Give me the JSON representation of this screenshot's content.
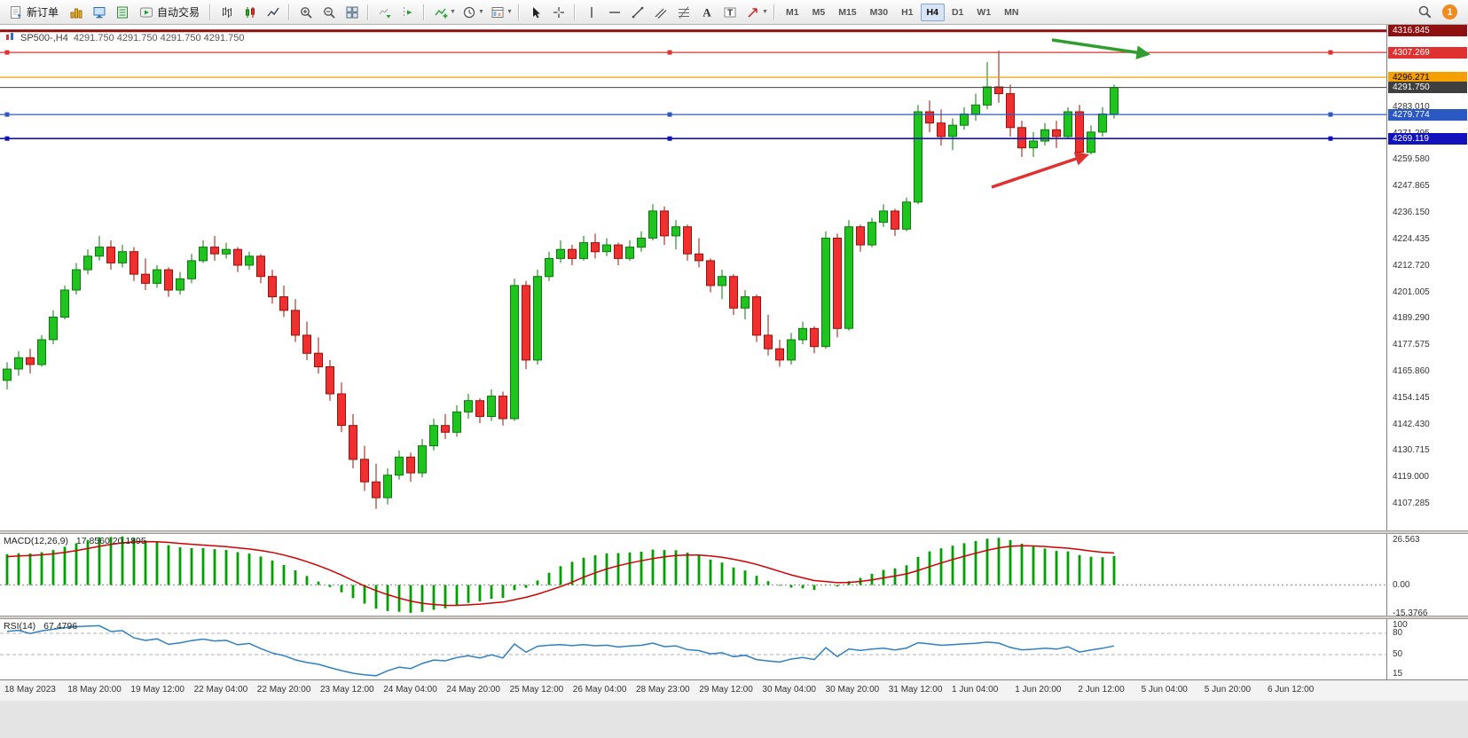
{
  "toolbar": {
    "new_order_label": "新订单",
    "autotrade_label": "自动交易",
    "timeframes": [
      "M1",
      "M5",
      "M15",
      "M30",
      "H1",
      "H4",
      "D1",
      "W1",
      "MN"
    ],
    "active_timeframe": "H4",
    "notification_count": "1",
    "items": [
      {
        "type": "button",
        "name": "new-order-button",
        "icon": "new-order-icon",
        "label_key": "new_order_label"
      },
      {
        "type": "icon",
        "name": "charts-icon"
      },
      {
        "type": "icon",
        "name": "market-watch-icon"
      },
      {
        "type": "icon",
        "name": "data-window-icon"
      },
      {
        "type": "button",
        "name": "autotrading-button",
        "icon": "autotrade-icon",
        "label_key": "autotrade_label"
      },
      {
        "type": "sep"
      },
      {
        "type": "icon",
        "name": "bar-chart-icon"
      },
      {
        "type": "icon",
        "name": "candlestick-chart-icon"
      },
      {
        "type": "icon",
        "name": "line-chart-icon"
      },
      {
        "type": "sep"
      },
      {
        "type": "icon",
        "name": "zoom-in-icon"
      },
      {
        "type": "icon",
        "name": "zoom-out-icon"
      },
      {
        "type": "icon",
        "name": "tile-windows-icon"
      },
      {
        "type": "sep"
      },
      {
        "type": "icon",
        "name": "auto-scroll-icon"
      },
      {
        "type": "icon",
        "name": "chart-shift-icon"
      },
      {
        "type": "sep"
      },
      {
        "type": "icon",
        "name": "indicators-icon",
        "caret": true
      },
      {
        "type": "icon",
        "name": "periods-icon",
        "caret": true
      },
      {
        "type": "icon",
        "name": "templates-icon",
        "caret": true
      },
      {
        "type": "sep"
      },
      {
        "type": "icon",
        "name": "cursor-icon"
      },
      {
        "type": "icon",
        "name": "crosshair-icon"
      },
      {
        "type": "sep"
      },
      {
        "type": "icon",
        "name": "vertical-line-icon"
      },
      {
        "type": "icon",
        "name": "horizontal-line-icon"
      },
      {
        "type": "icon",
        "name": "trendline-icon"
      },
      {
        "type": "icon",
        "name": "equidistant-channel-icon"
      },
      {
        "type": "icon",
        "name": "fibonacci-icon"
      },
      {
        "type": "icon",
        "name": "text-icon"
      },
      {
        "type": "icon",
        "name": "label-icon"
      },
      {
        "type": "icon",
        "name": "arrows-icon",
        "caret": true
      },
      {
        "type": "sep"
      },
      {
        "type": "timeframes"
      },
      {
        "type": "spacer"
      },
      {
        "type": "icon",
        "name": "search-icon"
      },
      {
        "type": "badge",
        "name": "notification-badge"
      }
    ]
  },
  "chart_data": {
    "type": "candlestick",
    "title": "SP500-,H4",
    "ohlc_display": "4291.750 4291.750 4291.750 4291.750",
    "current_price": 4291.75,
    "candle_up_color": "#1fc41f",
    "candle_up_stroke": "#0a7a0a",
    "candle_down_color": "#f03030",
    "candle_down_stroke": "#9c1006",
    "ohlc": [
      [
        4162,
        4170,
        4158,
        4167
      ],
      [
        4167,
        4175,
        4164,
        4172
      ],
      [
        4172,
        4176,
        4165,
        4169
      ],
      [
        4169,
        4182,
        4168,
        4180
      ],
      [
        4180,
        4193,
        4178,
        4190
      ],
      [
        4190,
        4204,
        4189,
        4202
      ],
      [
        4202,
        4214,
        4200,
        4211
      ],
      [
        4211,
        4220,
        4209,
        4217
      ],
      [
        4217,
        4226,
        4215,
        4221
      ],
      [
        4221,
        4224,
        4211,
        4214
      ],
      [
        4214,
        4222,
        4212,
        4219
      ],
      [
        4219,
        4221,
        4206,
        4209
      ],
      [
        4209,
        4216,
        4202,
        4205
      ],
      [
        4205,
        4213,
        4203,
        4211
      ],
      [
        4211,
        4212,
        4199,
        4202
      ],
      [
        4202,
        4210,
        4200,
        4207
      ],
      [
        4207,
        4218,
        4205,
        4215
      ],
      [
        4215,
        4224,
        4214,
        4221
      ],
      [
        4221,
        4226,
        4215,
        4218
      ],
      [
        4218,
        4223,
        4216,
        4220
      ],
      [
        4220,
        4221,
        4210,
        4213
      ],
      [
        4213,
        4219,
        4211,
        4217
      ],
      [
        4217,
        4218,
        4205,
        4208
      ],
      [
        4208,
        4211,
        4196,
        4199
      ],
      [
        4199,
        4204,
        4190,
        4193
      ],
      [
        4193,
        4198,
        4179,
        4182
      ],
      [
        4182,
        4188,
        4171,
        4174
      ],
      [
        4174,
        4181,
        4165,
        4168
      ],
      [
        4168,
        4171,
        4153,
        4156
      ],
      [
        4156,
        4161,
        4139,
        4142
      ],
      [
        4142,
        4147,
        4123,
        4127
      ],
      [
        4127,
        4133,
        4113,
        4117
      ],
      [
        4117,
        4125,
        4105,
        4110
      ],
      [
        4110,
        4123,
        4107,
        4120
      ],
      [
        4120,
        4131,
        4118,
        4128
      ],
      [
        4128,
        4130,
        4117,
        4121
      ],
      [
        4121,
        4136,
        4119,
        4133
      ],
      [
        4133,
        4145,
        4131,
        4142
      ],
      [
        4142,
        4147,
        4136,
        4139
      ],
      [
        4139,
        4151,
        4137,
        4148
      ],
      [
        4148,
        4156,
        4145,
        4153
      ],
      [
        4153,
        4154,
        4143,
        4146
      ],
      [
        4146,
        4158,
        4144,
        4155
      ],
      [
        4155,
        4157,
        4142,
        4145
      ],
      [
        4145,
        4207,
        4144,
        4204
      ],
      [
        4204,
        4206,
        4167,
        4171
      ],
      [
        4171,
        4211,
        4169,
        4208
      ],
      [
        4208,
        4219,
        4206,
        4216
      ],
      [
        4216,
        4224,
        4214,
        4220
      ],
      [
        4220,
        4222,
        4213,
        4216
      ],
      [
        4216,
        4226,
        4215,
        4223
      ],
      [
        4223,
        4227,
        4216,
        4219
      ],
      [
        4219,
        4225,
        4217,
        4222
      ],
      [
        4222,
        4223,
        4213,
        4216
      ],
      [
        4216,
        4224,
        4215,
        4221
      ],
      [
        4221,
        4228,
        4219,
        4225
      ],
      [
        4225,
        4240,
        4224,
        4237
      ],
      [
        4237,
        4239,
        4222,
        4226
      ],
      [
        4226,
        4233,
        4220,
        4230
      ],
      [
        4230,
        4231,
        4215,
        4218
      ],
      [
        4218,
        4225,
        4212,
        4215
      ],
      [
        4215,
        4216,
        4201,
        4204
      ],
      [
        4204,
        4211,
        4198,
        4208
      ],
      [
        4208,
        4209,
        4191,
        4194
      ],
      [
        4194,
        4202,
        4189,
        4199
      ],
      [
        4199,
        4200,
        4179,
        4182
      ],
      [
        4182,
        4191,
        4173,
        4176
      ],
      [
        4176,
        4180,
        4168,
        4171
      ],
      [
        4171,
        4183,
        4169,
        4180
      ],
      [
        4180,
        4188,
        4178,
        4185
      ],
      [
        4185,
        4186,
        4174,
        4177
      ],
      [
        4177,
        4228,
        4176,
        4225
      ],
      [
        4225,
        4227,
        4181,
        4185
      ],
      [
        4185,
        4233,
        4184,
        4230
      ],
      [
        4230,
        4231,
        4219,
        4222
      ],
      [
        4222,
        4234,
        4221,
        4232
      ],
      [
        4232,
        4240,
        4230,
        4237
      ],
      [
        4237,
        4238,
        4226,
        4229
      ],
      [
        4229,
        4243,
        4228,
        4241
      ],
      [
        4241,
        4284,
        4240,
        4281
      ],
      [
        4281,
        4286,
        4272,
        4276
      ],
      [
        4276,
        4282,
        4266,
        4270
      ],
      [
        4270,
        4278,
        4264,
        4275
      ],
      [
        4275,
        4283,
        4273,
        4280
      ],
      [
        4280,
        4289,
        4277,
        4284
      ],
      [
        4284,
        4303,
        4282,
        4292
      ],
      [
        4292,
        4308,
        4285,
        4289
      ],
      [
        4289,
        4293,
        4270,
        4274
      ],
      [
        4274,
        4277,
        4261,
        4265
      ],
      [
        4265,
        4272,
        4261,
        4268
      ],
      [
        4268,
        4276,
        4266,
        4273
      ],
      [
        4273,
        4277,
        4265,
        4270
      ],
      [
        4270,
        4283,
        4269,
        4281
      ],
      [
        4281,
        4284,
        4260,
        4263
      ],
      [
        4263,
        4275,
        4262,
        4272
      ],
      [
        4272,
        4283,
        4270,
        4280
      ],
      [
        4280,
        4293,
        4278,
        4291.75
      ]
    ],
    "price_lines": [
      {
        "value": 4316.845,
        "label": "4316.845",
        "color": "#8f1010",
        "text_color": "#ffffff",
        "width": 3,
        "handles": false
      },
      {
        "value": 4307.269,
        "label": "4307.269",
        "color": "#e03131",
        "text_color": "#ffffff",
        "width": 1.2,
        "handles": true
      },
      {
        "value": 4296.271,
        "label": "4296.271",
        "color": "#f59f00",
        "text_color": "#000000",
        "width": 1.2,
        "handles": false
      },
      {
        "value": 4291.75,
        "label": "4291.750",
        "color": "#3f3f3f",
        "text_color": "#ffffff",
        "width": 1,
        "handles": false
      },
      {
        "value": 4279.774,
        "label": "4279.774",
        "color": "#2b59c3",
        "text_color": "#ffffff",
        "width": 1.2,
        "handles": true
      },
      {
        "value": 4269.119,
        "label": "4269.119",
        "color": "#1212bd",
        "text_color": "#ffffff",
        "width": 1.6,
        "handles": true
      }
    ],
    "price_ticks": [
      "4283.010",
      "4271.295",
      "4259.580",
      "4247.865",
      "4236.150",
      "4224.435",
      "4212.720",
      "4201.005",
      "4189.290",
      "4177.575",
      "4165.860",
      "4154.145",
      "4142.430",
      "4130.715",
      "4119.000",
      "4107.285"
    ],
    "time_labels": [
      "18 May 2023",
      "18 May 20:00",
      "19 May 12:00",
      "22 May 04:00",
      "22 May 20:00",
      "23 May 12:00",
      "24 May 04:00",
      "24 May 20:00",
      "25 May 12:00",
      "26 May 04:00",
      "28 May 23:00",
      "29 May 12:00",
      "30 May 04:00",
      "30 May 20:00",
      "31 May 12:00",
      "1 Jun 04:00",
      "1 Jun 20:00",
      "2 Jun 12:00",
      "5 Jun 04:00",
      "5 Jun 20:00",
      "6 Jun 12:00"
    ],
    "annotations": [
      {
        "id": "ag",
        "name": "green-arrow-object",
        "color": "#2f9e2f",
        "from": [
          1186,
          17
        ],
        "to": [
          1294,
          33
        ]
      },
      {
        "id": "ar",
        "name": "red-arrow-object",
        "color": "#e03131",
        "from": [
          1118,
          183
        ],
        "to": [
          1225,
          147
        ]
      }
    ],
    "indicators": [
      {
        "name": "MACD",
        "label": "MACD(12,26,9)",
        "values_display": "17.8560 20.1895",
        "scale_labels": [
          "26.563",
          "0.00",
          "-15.3766"
        ],
        "scale_max": 27.5,
        "scale_min": -16.5,
        "histogram_color": "#00a000",
        "signal_color": "#d00000"
      },
      {
        "name": "RSI",
        "label": "RSI(14)",
        "values_display": "67.4796",
        "scale_labels": [
          "100",
          "80",
          "50",
          "15"
        ],
        "scale_max": 100,
        "scale_min": 15,
        "levels": [
          80,
          50
        ],
        "line_color": "#2f80c2"
      }
    ]
  }
}
